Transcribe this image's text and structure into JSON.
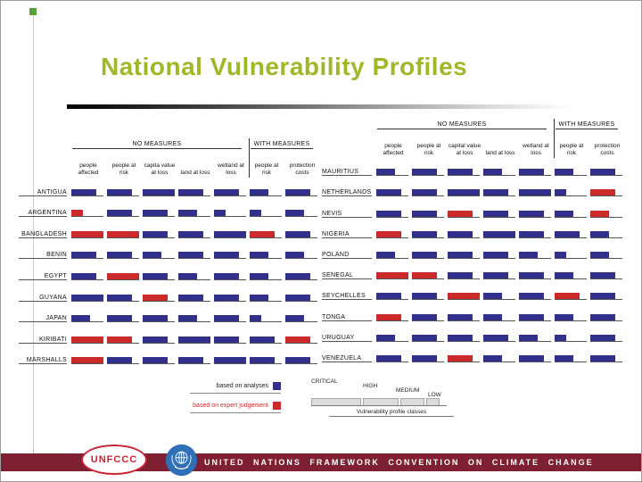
{
  "slide": {
    "title": "National Vulnerability Profiles"
  },
  "legend": {
    "analyses_label": "based on analyses",
    "expert_label": "based on expert judgement",
    "classes": [
      "CRITICAL",
      "HIGH",
      "MEDIUM",
      "LOW"
    ],
    "scale_caption": "Vulnerability profile classes"
  },
  "footer": {
    "banner": "UNITED NATIONS FRAMEWORK CONVENTION ON CLIMATE CHANGE",
    "unfccc": "UNFCCC"
  },
  "colors": {
    "analysis_bar": "#31318c",
    "expert_bar": "#cc2a2a",
    "title": "#9eb927",
    "footer_band": "#7f1f32"
  },
  "chart_data": {
    "type": "table",
    "title": "National Vulnerability Profiles",
    "legend": {
      "navy": "based on analyses",
      "red": "based on expert judgement"
    },
    "size_classes": [
      "critical",
      "high",
      "medium",
      "low"
    ],
    "size_class_labels": [
      "CRITICAL",
      "HIGH",
      "MEDIUM",
      "LOW"
    ],
    "left_panel": {
      "groups": [
        {
          "label": "NO MEASURES",
          "span": 5
        },
        {
          "label": "WITH MEASURES",
          "span": 2
        }
      ],
      "columns": [
        "people affected",
        "people at risk",
        "capita value at loss",
        "land at loss",
        "wetland at loss",
        "people at risk",
        "protection costs"
      ],
      "rows": [
        {
          "country": "ANTIGUA",
          "cells": [
            {
              "color": "navy",
              "size": "high"
            },
            {
              "color": "navy",
              "size": "high"
            },
            {
              "color": "navy",
              "size": "critical"
            },
            {
              "color": "navy",
              "size": "high"
            },
            {
              "color": "navy",
              "size": "high"
            },
            {
              "color": "navy",
              "size": "medium"
            },
            {
              "color": "navy",
              "size": "high"
            }
          ]
        },
        {
          "country": "ARGENTINA",
          "cells": [
            {
              "color": "red",
              "size": "low"
            },
            {
              "color": "navy",
              "size": "high"
            },
            {
              "color": "navy",
              "size": "high"
            },
            {
              "color": "navy",
              "size": "medium"
            },
            {
              "color": "navy",
              "size": "low"
            },
            {
              "color": "navy",
              "size": "low"
            },
            {
              "color": "navy",
              "size": "medium"
            }
          ]
        },
        {
          "country": "BANGLADESH",
          "cells": [
            {
              "color": "red",
              "size": "critical"
            },
            {
              "color": "red",
              "size": "critical"
            },
            {
              "color": "navy",
              "size": "high"
            },
            {
              "color": "navy",
              "size": "high"
            },
            {
              "color": "navy",
              "size": "critical"
            },
            {
              "color": "red",
              "size": "high"
            },
            {
              "color": "navy",
              "size": "high"
            }
          ]
        },
        {
          "country": "BENIN",
          "cells": [
            {
              "color": "navy",
              "size": "high"
            },
            {
              "color": "navy",
              "size": "high"
            },
            {
              "color": "navy",
              "size": "medium"
            },
            {
              "color": "navy",
              "size": "high"
            },
            {
              "color": "navy",
              "size": "high"
            },
            {
              "color": "navy",
              "size": "medium"
            },
            {
              "color": "navy",
              "size": "medium"
            }
          ]
        },
        {
          "country": "EGYPT",
          "cells": [
            {
              "color": "navy",
              "size": "high"
            },
            {
              "color": "red",
              "size": "critical"
            },
            {
              "color": "navy",
              "size": "high"
            },
            {
              "color": "navy",
              "size": "medium"
            },
            {
              "color": "navy",
              "size": "high"
            },
            {
              "color": "navy",
              "size": "medium"
            },
            {
              "color": "navy",
              "size": "high"
            }
          ]
        },
        {
          "country": "GUYANA",
          "cells": [
            {
              "color": "navy",
              "size": "critical"
            },
            {
              "color": "navy",
              "size": "high"
            },
            {
              "color": "red",
              "size": "high"
            },
            {
              "color": "navy",
              "size": "high"
            },
            {
              "color": "navy",
              "size": "high"
            },
            {
              "color": "navy",
              "size": "medium"
            },
            {
              "color": "navy",
              "size": "high"
            }
          ]
        },
        {
          "country": "JAPAN",
          "cells": [
            {
              "color": "navy",
              "size": "medium"
            },
            {
              "color": "navy",
              "size": "high"
            },
            {
              "color": "navy",
              "size": "high"
            },
            {
              "color": "navy",
              "size": "medium"
            },
            {
              "color": "navy",
              "size": "high"
            },
            {
              "color": "navy",
              "size": "low"
            },
            {
              "color": "navy",
              "size": "medium"
            }
          ]
        },
        {
          "country": "KIRIBATI",
          "cells": [
            {
              "color": "red",
              "size": "critical"
            },
            {
              "color": "red",
              "size": "high"
            },
            {
              "color": "navy",
              "size": "high"
            },
            {
              "color": "navy",
              "size": "critical"
            },
            {
              "color": "navy",
              "size": "high"
            },
            {
              "color": "navy",
              "size": "high"
            },
            {
              "color": "red",
              "size": "high"
            }
          ]
        },
        {
          "country": "MARSHALLS",
          "cells": [
            {
              "color": "red",
              "size": "critical"
            },
            {
              "color": "navy",
              "size": "high"
            },
            {
              "color": "navy",
              "size": "high"
            },
            {
              "color": "navy",
              "size": "high"
            },
            {
              "color": "navy",
              "size": "critical"
            },
            {
              "color": "navy",
              "size": "high"
            },
            {
              "color": "navy",
              "size": "high"
            }
          ]
        }
      ]
    },
    "right_panel": {
      "groups": [
        {
          "label": "NO MEASURES",
          "span": 5
        },
        {
          "label": "WITH MEASURES",
          "span": 2
        }
      ],
      "columns": [
        "people affected",
        "people at risk",
        "capital value at loss",
        "land at loss",
        "wetland at loss",
        "people at risk",
        "protection costs"
      ],
      "rows": [
        {
          "country": "MAURITIUS",
          "cells": [
            {
              "color": "navy",
              "size": "medium"
            },
            {
              "color": "navy",
              "size": "high"
            },
            {
              "color": "navy",
              "size": "high"
            },
            {
              "color": "navy",
              "size": "medium"
            },
            {
              "color": "navy",
              "size": "high"
            },
            {
              "color": "navy",
              "size": "medium"
            },
            {
              "color": "navy",
              "size": "high"
            }
          ]
        },
        {
          "country": "NETHERLANDS",
          "cells": [
            {
              "color": "navy",
              "size": "high"
            },
            {
              "color": "navy",
              "size": "high"
            },
            {
              "color": "navy",
              "size": "critical"
            },
            {
              "color": "navy",
              "size": "high"
            },
            {
              "color": "navy",
              "size": "critical"
            },
            {
              "color": "navy",
              "size": "low"
            },
            {
              "color": "red",
              "size": "high"
            }
          ]
        },
        {
          "country": "NEVIS",
          "cells": [
            {
              "color": "navy",
              "size": "high"
            },
            {
              "color": "navy",
              "size": "high"
            },
            {
              "color": "red",
              "size": "high"
            },
            {
              "color": "navy",
              "size": "high"
            },
            {
              "color": "navy",
              "size": "high"
            },
            {
              "color": "navy",
              "size": "medium"
            },
            {
              "color": "red",
              "size": "medium"
            }
          ]
        },
        {
          "country": "NIGERIA",
          "cells": [
            {
              "color": "red",
              "size": "high"
            },
            {
              "color": "navy",
              "size": "high"
            },
            {
              "color": "navy",
              "size": "high"
            },
            {
              "color": "navy",
              "size": "critical"
            },
            {
              "color": "navy",
              "size": "high"
            },
            {
              "color": "navy",
              "size": "high"
            },
            {
              "color": "navy",
              "size": "medium"
            }
          ]
        },
        {
          "country": "POLAND",
          "cells": [
            {
              "color": "navy",
              "size": "medium"
            },
            {
              "color": "navy",
              "size": "high"
            },
            {
              "color": "navy",
              "size": "high"
            },
            {
              "color": "navy",
              "size": "high"
            },
            {
              "color": "navy",
              "size": "medium"
            },
            {
              "color": "navy",
              "size": "low"
            },
            {
              "color": "navy",
              "size": "medium"
            }
          ]
        },
        {
          "country": "SENEGAL",
          "cells": [
            {
              "color": "red",
              "size": "critical"
            },
            {
              "color": "red",
              "size": "high"
            },
            {
              "color": "navy",
              "size": "high"
            },
            {
              "color": "navy",
              "size": "high"
            },
            {
              "color": "navy",
              "size": "high"
            },
            {
              "color": "navy",
              "size": "medium"
            },
            {
              "color": "navy",
              "size": "high"
            }
          ]
        },
        {
          "country": "SEYCHELLES",
          "cells": [
            {
              "color": "navy",
              "size": "high"
            },
            {
              "color": "navy",
              "size": "high"
            },
            {
              "color": "red",
              "size": "critical"
            },
            {
              "color": "navy",
              "size": "medium"
            },
            {
              "color": "navy",
              "size": "high"
            },
            {
              "color": "red",
              "size": "high"
            },
            {
              "color": "navy",
              "size": "high"
            }
          ]
        },
        {
          "country": "TONGA",
          "cells": [
            {
              "color": "red",
              "size": "high"
            },
            {
              "color": "navy",
              "size": "high"
            },
            {
              "color": "navy",
              "size": "high"
            },
            {
              "color": "navy",
              "size": "medium"
            },
            {
              "color": "navy",
              "size": "high"
            },
            {
              "color": "navy",
              "size": "medium"
            },
            {
              "color": "navy",
              "size": "high"
            }
          ]
        },
        {
          "country": "URUGUAY",
          "cells": [
            {
              "color": "navy",
              "size": "medium"
            },
            {
              "color": "navy",
              "size": "high"
            },
            {
              "color": "navy",
              "size": "high"
            },
            {
              "color": "navy",
              "size": "high"
            },
            {
              "color": "navy",
              "size": "medium"
            },
            {
              "color": "navy",
              "size": "low"
            },
            {
              "color": "navy",
              "size": "high"
            }
          ]
        },
        {
          "country": "VENEZUELA",
          "cells": [
            {
              "color": "navy",
              "size": "high"
            },
            {
              "color": "navy",
              "size": "high"
            },
            {
              "color": "red",
              "size": "high"
            },
            {
              "color": "navy",
              "size": "medium"
            },
            {
              "color": "navy",
              "size": "high"
            },
            {
              "color": "navy",
              "size": "medium"
            },
            {
              "color": "navy",
              "size": "high"
            }
          ]
        }
      ]
    }
  }
}
